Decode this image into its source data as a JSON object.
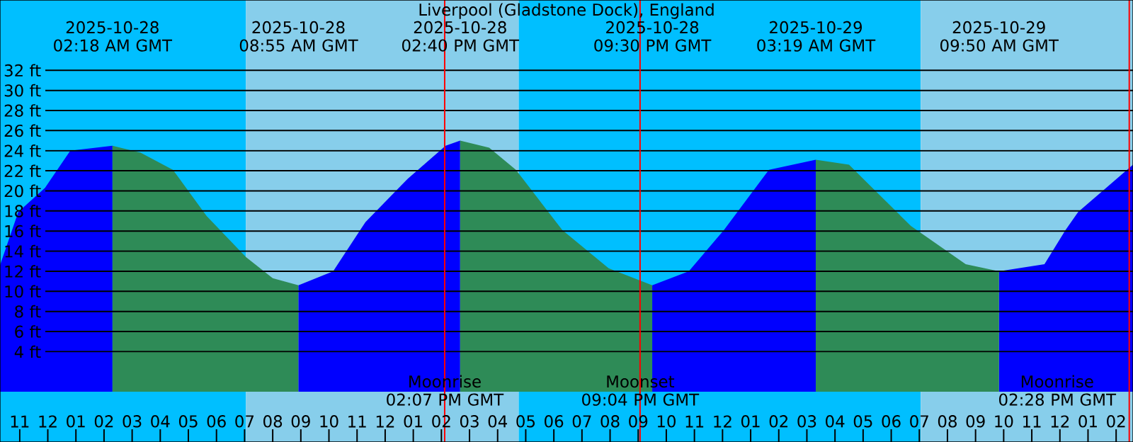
{
  "chart_data": {
    "type": "area",
    "title": "Liverpool (Gladstone Dock), England",
    "xlim": [
      "2025-10-27T22:18",
      "2025-10-29T14:36"
    ],
    "ylim": [
      -5,
      39
    ],
    "yticks": [
      {
        "value": 4,
        "label": "4 ft"
      },
      {
        "value": 6,
        "label": "6 ft"
      },
      {
        "value": 8,
        "label": "8 ft"
      },
      {
        "value": 10,
        "label": "10 ft"
      },
      {
        "value": 12,
        "label": "12 ft"
      },
      {
        "value": 14,
        "label": "14 ft"
      },
      {
        "value": 16,
        "label": "16 ft"
      },
      {
        "value": 18,
        "label": "18 ft"
      },
      {
        "value": 20,
        "label": "20 ft"
      },
      {
        "value": 22,
        "label": "22 ft"
      },
      {
        "value": 24,
        "label": "24 ft"
      },
      {
        "value": 26,
        "label": "26 ft"
      },
      {
        "value": 28,
        "label": "28 ft"
      },
      {
        "value": 30,
        "label": "30 ft"
      },
      {
        "value": 32,
        "label": "32 ft"
      }
    ],
    "xticks": [
      {
        "value": "2025-10-27T23:00",
        "label": "11"
      },
      {
        "value": "2025-10-28T00:00",
        "label": "12"
      },
      {
        "value": "2025-10-28T01:00",
        "label": "01"
      },
      {
        "value": "2025-10-28T02:00",
        "label": "02"
      },
      {
        "value": "2025-10-28T03:00",
        "label": "03"
      },
      {
        "value": "2025-10-28T04:00",
        "label": "04"
      },
      {
        "value": "2025-10-28T05:00",
        "label": "05"
      },
      {
        "value": "2025-10-28T06:00",
        "label": "06"
      },
      {
        "value": "2025-10-28T07:00",
        "label": "07"
      },
      {
        "value": "2025-10-28T08:00",
        "label": "08"
      },
      {
        "value": "2025-10-28T09:00",
        "label": "09"
      },
      {
        "value": "2025-10-28T10:00",
        "label": "10"
      },
      {
        "value": "2025-10-28T11:00",
        "label": "11"
      },
      {
        "value": "2025-10-28T12:00",
        "label": "12"
      },
      {
        "value": "2025-10-28T13:00",
        "label": "01"
      },
      {
        "value": "2025-10-28T14:00",
        "label": "02"
      },
      {
        "value": "2025-10-28T15:00",
        "label": "03"
      },
      {
        "value": "2025-10-28T16:00",
        "label": "04"
      },
      {
        "value": "2025-10-28T17:00",
        "label": "05"
      },
      {
        "value": "2025-10-28T18:00",
        "label": "06"
      },
      {
        "value": "2025-10-28T19:00",
        "label": "07"
      },
      {
        "value": "2025-10-28T20:00",
        "label": "08"
      },
      {
        "value": "2025-10-28T21:00",
        "label": "09"
      },
      {
        "value": "2025-10-28T22:00",
        "label": "10"
      },
      {
        "value": "2025-10-28T23:00",
        "label": "11"
      },
      {
        "value": "2025-10-29T00:00",
        "label": "12"
      },
      {
        "value": "2025-10-29T01:00",
        "label": "01"
      },
      {
        "value": "2025-10-29T02:00",
        "label": "02"
      },
      {
        "value": "2025-10-29T03:00",
        "label": "03"
      },
      {
        "value": "2025-10-29T04:00",
        "label": "04"
      },
      {
        "value": "2025-10-29T05:00",
        "label": "05"
      },
      {
        "value": "2025-10-29T06:00",
        "label": "06"
      },
      {
        "value": "2025-10-29T07:00",
        "label": "07"
      },
      {
        "value": "2025-10-29T08:00",
        "label": "08"
      },
      {
        "value": "2025-10-29T09:00",
        "label": "09"
      },
      {
        "value": "2025-10-29T10:00",
        "label": "10"
      },
      {
        "value": "2025-10-29T11:00",
        "label": "11"
      },
      {
        "value": "2025-10-29T12:00",
        "label": "12"
      },
      {
        "value": "2025-10-29T13:00",
        "label": "01"
      },
      {
        "value": "2025-10-29T14:00",
        "label": "02"
      }
    ],
    "grid": "y",
    "series": [
      {
        "color": "#0000ff",
        "x": [
          "2025-10-27T22:18",
          "2025-10-27T22:57",
          "2025-10-27T23:54",
          "2025-10-28T00:48",
          "2025-10-28T02:18"
        ],
        "values": [
          12.6,
          17.9,
          20.3,
          24.0,
          24.5
        ]
      },
      {
        "color": "#2e8b57",
        "x": [
          "2025-10-28T02:18",
          "2025-10-28T03:18",
          "2025-10-28T04:27",
          "2025-10-28T05:39",
          "2025-10-28T07:03",
          "2025-10-28T08:00",
          "2025-10-28T08:55"
        ],
        "values": [
          24.5,
          23.8,
          22.1,
          17.5,
          13.4,
          11.3,
          10.6
        ]
      },
      {
        "color": "#0000ff",
        "x": [
          "2025-10-28T08:55",
          "2025-10-28T10:09",
          "2025-10-28T11:18",
          "2025-10-28T12:48",
          "2025-10-28T14:09",
          "2025-10-28T14:40"
        ],
        "values": [
          10.6,
          12.0,
          16.9,
          21.2,
          24.5,
          25.0
        ]
      },
      {
        "color": "#2e8b57",
        "x": [
          "2025-10-28T14:40",
          "2025-10-28T15:42",
          "2025-10-28T16:39",
          "2025-10-28T18:18",
          "2025-10-28T19:57",
          "2025-10-28T21:30"
        ],
        "values": [
          25.0,
          24.3,
          22.1,
          16.1,
          12.3,
          10.6
        ]
      },
      {
        "color": "#0000ff",
        "x": [
          "2025-10-28T21:30",
          "2025-10-28T22:48",
          "2025-10-29T00:03",
          "2025-10-29T01:39",
          "2025-10-29T03:19"
        ],
        "values": [
          10.6,
          12.0,
          16.1,
          22.1,
          23.1
        ]
      },
      {
        "color": "#2e8b57",
        "x": [
          "2025-10-29T03:19",
          "2025-10-29T04:30",
          "2025-10-29T06:42",
          "2025-10-29T08:39",
          "2025-10-29T09:50"
        ],
        "values": [
          23.1,
          22.6,
          16.5,
          12.7,
          12.0
        ]
      },
      {
        "color": "#0000ff",
        "x": [
          "2025-10-29T09:50",
          "2025-10-29T11:27",
          "2025-10-29T12:12",
          "2025-10-29T12:39",
          "2025-10-29T14:36"
        ],
        "values": [
          12.0,
          12.7,
          16.1,
          17.9,
          22.6
        ]
      }
    ],
    "bands": [
      {
        "axis": "x",
        "from": "2025-10-27T22:18",
        "to": "2025-10-28T07:03",
        "color": "#00bfff"
      },
      {
        "axis": "x",
        "from": "2025-10-28T07:03",
        "to": "2025-10-28T16:45",
        "color": "#87ceeb"
      },
      {
        "axis": "x",
        "from": "2025-10-28T16:45",
        "to": "2025-10-29T07:03",
        "color": "#00bfff"
      },
      {
        "axis": "x",
        "from": "2025-10-29T07:03",
        "to": "2025-10-29T14:36",
        "color": "#87ceeb"
      }
    ],
    "ref_lines": [
      {
        "axis": "x",
        "value": "2025-10-28T14:07",
        "label": "Moonrise 02:07 PM GMT",
        "color": "#ff0000"
      },
      {
        "axis": "x",
        "value": "2025-10-28T21:04",
        "label": "Moonset 09:04 PM GMT",
        "color": "#ff0000"
      },
      {
        "axis": "x",
        "value": "2025-10-29T14:28",
        "label": "Moonrise 02:28 PM GMT",
        "color": "#ff0000"
      }
    ],
    "annotations": [
      "2025-10-28 02:18 AM GMT",
      "2025-10-28 08:55 AM GMT",
      "2025-10-28 02:40 PM GMT",
      "2025-10-28 09:30 PM GMT",
      "2025-10-29 03:19 AM GMT",
      "2025-10-29 09:50 AM GMT"
    ]
  }
}
